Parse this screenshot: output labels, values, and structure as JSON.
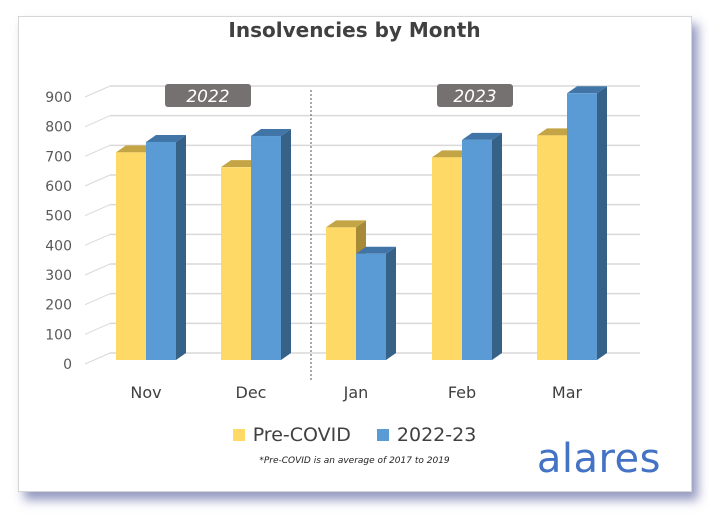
{
  "chart_data": {
    "type": "bar",
    "title": "Insolvencies by Month",
    "categories": [
      "Nov",
      "Dec",
      "Jan",
      "Feb",
      "Mar"
    ],
    "group_labels": [
      {
        "label": "2022",
        "categories": [
          "Nov",
          "Dec"
        ]
      },
      {
        "label": "2023",
        "categories": [
          "Jan",
          "Feb",
          "Mar"
        ]
      }
    ],
    "series": [
      {
        "name": "Pre-COVID",
        "values": [
          700,
          650,
          447,
          683,
          757
        ],
        "color": "#ffd966"
      },
      {
        "name": "2022-23",
        "values": [
          735,
          755,
          358,
          742,
          899
        ],
        "color": "#5b9bd5"
      }
    ],
    "yticks": [
      0,
      100,
      200,
      300,
      400,
      500,
      600,
      700,
      800,
      900
    ],
    "ylim": [
      0,
      900
    ],
    "xlabel": "",
    "ylabel": "",
    "grid": true,
    "legend": "bottom",
    "footnote": "*Pre-COVID is an average of 2017 to 2019"
  },
  "brand": {
    "logo_text": "alares",
    "color": "#4472c4"
  }
}
